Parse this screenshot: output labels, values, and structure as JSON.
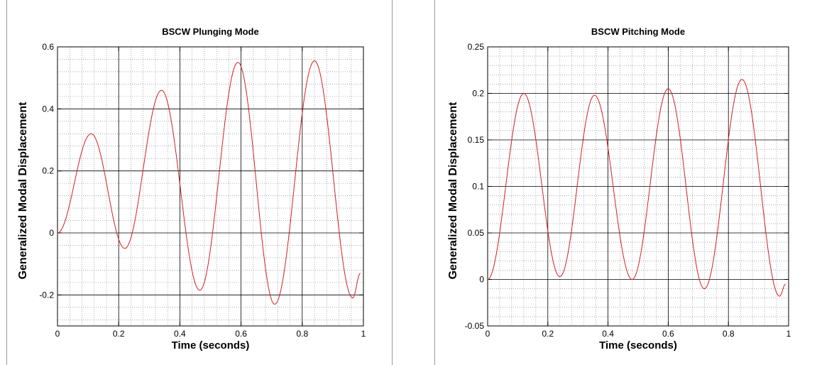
{
  "chart_data": [
    {
      "type": "line",
      "title": "BSCW Plunging Mode",
      "xlabel": "Time (seconds)",
      "ylabel": "Generalized Modal Displacement",
      "xlim": [
        0,
        1
      ],
      "ylim": [
        -0.3,
        0.6
      ],
      "xticks": [
        0,
        0.2,
        0.4,
        0.6,
        0.8,
        1
      ],
      "xtick_labels": [
        "0",
        "0.2",
        "0.4",
        "0.6",
        "0.8",
        "1"
      ],
      "yticks": [
        -0.2,
        0,
        0.2,
        0.4,
        0.6
      ],
      "ytick_labels": [
        "-0.2",
        "0",
        "0.2",
        "0.4",
        "0.6"
      ],
      "grid": true,
      "line_color": "#d42020",
      "series": [
        {
          "x": [
            0,
            0.11,
            0.22,
            0.34,
            0.465,
            0.59,
            0.71,
            0.84,
            0.965,
            0.99
          ],
          "y": [
            0,
            0.32,
            -0.05,
            0.46,
            -0.185,
            0.55,
            -0.23,
            0.555,
            -0.21,
            -0.13
          ]
        }
      ]
    },
    {
      "type": "line",
      "title": "BSCW Pitching Mode",
      "xlabel": "Time (seconds)",
      "ylabel": "Generalized Modal Displacement",
      "xlim": [
        0,
        1
      ],
      "ylim": [
        -0.05,
        0.25
      ],
      "xticks": [
        0,
        0.2,
        0.4,
        0.6,
        0.8,
        1
      ],
      "xtick_labels": [
        "0",
        "0.2",
        "0.4",
        "0.6",
        "0.8",
        "1"
      ],
      "yticks": [
        -0.05,
        0,
        0.05,
        0.1,
        0.15,
        0.2,
        0.25
      ],
      "ytick_labels": [
        "-0.05",
        "0",
        "0.05",
        "0.1",
        "0.15",
        "0.2",
        "0.25"
      ],
      "grid": true,
      "line_color": "#d42020",
      "series": [
        {
          "x": [
            0,
            0.12,
            0.24,
            0.355,
            0.48,
            0.6,
            0.72,
            0.845,
            0.97,
            0.99
          ],
          "y": [
            0,
            0.2,
            0.003,
            0.198,
            0,
            0.205,
            -0.01,
            0.215,
            -0.018,
            -0.005
          ]
        }
      ]
    }
  ]
}
